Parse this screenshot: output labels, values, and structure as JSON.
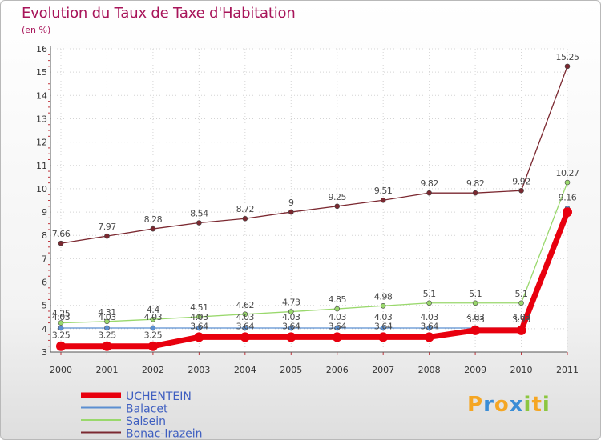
{
  "title": "Evolution du Taux de Taxe d'Habitation",
  "subtitle": "(en %)",
  "logo": {
    "letters": [
      "P",
      "r",
      "o",
      "x",
      "i",
      "t",
      "i"
    ],
    "colors": [
      "#f5a623",
      "#3a8dd6",
      "#f5a623",
      "#3a8dd6",
      "#8cc63f",
      "#f5a623",
      "#8cc63f"
    ]
  },
  "chart_data": {
    "type": "line",
    "x": [
      "2000",
      "2001",
      "2002",
      "2003",
      "2004",
      "2005",
      "2006",
      "2007",
      "2008",
      "2009",
      "2010",
      "2011"
    ],
    "ylim": [
      3,
      16
    ],
    "yticks": [
      "3",
      "4",
      "5",
      "6",
      "7",
      "8",
      "9",
      "10",
      "11",
      "12",
      "13",
      "14",
      "15",
      "16"
    ],
    "grid": true,
    "legend_placement": "bottom-left",
    "series": [
      {
        "name": "UCHENTEIN",
        "color": "#e8000e",
        "values": [
          3.25,
          3.25,
          3.25,
          3.64,
          3.64,
          3.64,
          3.64,
          3.64,
          3.64,
          3.93,
          3.93,
          9.0
        ],
        "labels": [
          "3.25",
          "3.25",
          "3.25",
          "3.64",
          "3.64",
          "3.64",
          "3.64",
          "3.64",
          "3.64",
          "3.93",
          "3.93",
          ""
        ]
      },
      {
        "name": "Balacet",
        "color": "#5b8fd1",
        "values": [
          4.03,
          4.03,
          4.03,
          4.03,
          4.03,
          4.03,
          4.03,
          4.03,
          4.03,
          4.03,
          4.03,
          9.16
        ],
        "labels": [
          "4.03",
          "4.03",
          "4.03",
          "4.03",
          "4.03",
          "4.03",
          "4.03",
          "4.03",
          "4.03",
          "4.03",
          "4.03",
          "9.16"
        ]
      },
      {
        "name": "Salsein",
        "color": "#99d86c",
        "values": [
          4.25,
          4.31,
          4.4,
          4.51,
          4.62,
          4.73,
          4.85,
          4.98,
          5.1,
          5.1,
          5.1,
          10.27
        ],
        "labels": [
          "4.25",
          "4.31",
          "4.4",
          "4.51",
          "4.62",
          "4.73",
          "4.85",
          "4.98",
          "5.1",
          "5.1",
          "5.1",
          "10.27"
        ]
      },
      {
        "name": "Bonac-Irazein",
        "color": "#7b2830",
        "values": [
          7.66,
          7.97,
          8.28,
          8.54,
          8.72,
          9.0,
          9.25,
          9.51,
          9.82,
          9.82,
          9.92,
          15.25
        ],
        "labels": [
          "7.66",
          "7.97",
          "8.28",
          "8.54",
          "8.72",
          "9",
          "9.25",
          "9.51",
          "9.82",
          "9.82",
          "9.92",
          "15.25"
        ]
      }
    ]
  }
}
